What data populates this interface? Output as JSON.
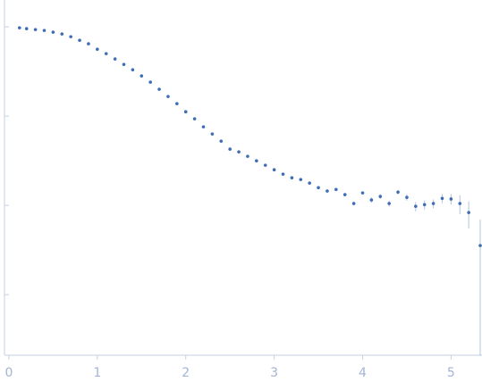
{
  "chart_data": {
    "type": "scatter",
    "color": "#3e6db5",
    "ylog": true,
    "x": [
      0.12,
      0.2,
      0.3,
      0.4,
      0.5,
      0.6,
      0.7,
      0.8,
      0.9,
      1.0,
      1.1,
      1.2,
      1.3,
      1.4,
      1.5,
      1.6,
      1.7,
      1.8,
      1.9,
      2.0,
      2.1,
      2.2,
      2.3,
      2.4,
      2.5,
      2.6,
      2.7,
      2.8,
      2.9,
      3.0,
      3.1,
      3.2,
      3.3,
      3.4,
      3.5,
      3.6,
      3.7,
      3.8,
      3.9,
      4.0,
      4.1,
      4.2,
      4.3,
      4.4,
      4.5,
      4.6,
      4.7,
      4.8,
      4.9,
      5.0,
      5.1,
      5.2,
      5.33
    ],
    "values": [
      0.977,
      0.955,
      0.933,
      0.912,
      0.871,
      0.832,
      0.776,
      0.708,
      0.646,
      0.562,
      0.501,
      0.437,
      0.38,
      0.331,
      0.282,
      0.24,
      0.2,
      0.166,
      0.138,
      0.112,
      0.0933,
      0.0759,
      0.0631,
      0.0525,
      0.0427,
      0.0398,
      0.0355,
      0.0316,
      0.0282,
      0.0251,
      0.0224,
      0.0204,
      0.0195,
      0.0178,
      0.0158,
      0.0145,
      0.0151,
      0.0132,
      0.0105,
      0.0138,
      0.0115,
      0.0126,
      0.0105,
      0.0141,
      0.0123,
      0.00977,
      0.0102,
      0.0105,
      0.012,
      0.0118,
      0.0105,
      0.00832,
      0.00355
    ],
    "errors": [
      0.005,
      0.005,
      0.005,
      0.005,
      0.005,
      0.004,
      0.004,
      0.004,
      0.003,
      0.003,
      0.003,
      0.002,
      0.002,
      0.002,
      0.002,
      0.002,
      0.001,
      0.001,
      0.001,
      0.001,
      0.001,
      0.001,
      0.001,
      0.001,
      0.0005,
      0.0005,
      0.0005,
      0.0005,
      0.0005,
      0.0005,
      0.0005,
      0.0005,
      0.0005,
      0.0005,
      0.0005,
      0.0005,
      0.0005,
      0.0005,
      0.0005,
      0.0005,
      0.0008,
      0.0008,
      0.0008,
      0.0008,
      0.001,
      0.0012,
      0.0012,
      0.0012,
      0.0014,
      0.0016,
      0.0025,
      0.0028,
      0.0034
    ],
    "xlim": [
      -0.05,
      5.35
    ],
    "xticks": [
      0,
      1,
      2,
      3,
      4,
      5
    ],
    "ylim": [
      0.00021,
      2
    ],
    "yticks": [
      0.001,
      0.01,
      0.1,
      1
    ]
  }
}
